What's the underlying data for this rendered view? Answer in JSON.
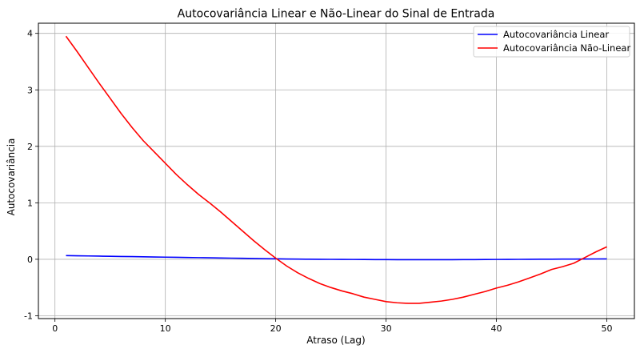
{
  "chart_data": {
    "type": "line",
    "title": "Autocovariância Linear e Não-Linear do Sinal de Entrada",
    "xlabel": "Atraso (Lag)",
    "ylabel": "Autocovariância",
    "xlim": [
      -1.5,
      52.5
    ],
    "ylim": [
      -1.05,
      4.18
    ],
    "xticks": [
      0,
      10,
      20,
      30,
      40,
      50
    ],
    "yticks": [
      -1,
      0,
      1,
      2,
      3,
      4
    ],
    "grid": true,
    "legend_position": "top-right",
    "x": [
      1,
      2,
      3,
      4,
      5,
      6,
      7,
      8,
      9,
      10,
      11,
      12,
      13,
      14,
      15,
      16,
      17,
      18,
      19,
      20,
      21,
      22,
      23,
      24,
      25,
      26,
      27,
      28,
      29,
      30,
      31,
      32,
      33,
      34,
      35,
      36,
      37,
      38,
      39,
      40,
      41,
      42,
      43,
      44,
      45,
      46,
      47,
      48,
      49,
      50
    ],
    "series": [
      {
        "name": "Autocovariância Linear",
        "color": "#0000ff",
        "values": [
          0.065,
          0.062,
          0.059,
          0.056,
          0.053,
          0.05,
          0.047,
          0.044,
          0.041,
          0.038,
          0.035,
          0.032,
          0.029,
          0.026,
          0.023,
          0.02,
          0.017,
          0.014,
          0.011,
          0.008,
          0.005,
          0.003,
          0.001,
          0.0,
          -0.001,
          -0.002,
          -0.003,
          -0.004,
          -0.005,
          -0.006,
          -0.007,
          -0.008,
          -0.008,
          -0.008,
          -0.008,
          -0.007,
          -0.006,
          -0.005,
          -0.004,
          -0.003,
          -0.002,
          -0.001,
          0.0,
          0.001,
          0.002,
          0.003,
          0.004,
          0.005,
          0.006,
          0.007
        ]
      },
      {
        "name": "Autocovariância Não-Linear",
        "color": "#ff0000",
        "values": [
          3.95,
          3.68,
          3.4,
          3.12,
          2.85,
          2.58,
          2.33,
          2.1,
          1.9,
          1.7,
          1.5,
          1.32,
          1.15,
          1.0,
          0.84,
          0.67,
          0.5,
          0.33,
          0.17,
          0.02,
          -0.12,
          -0.24,
          -0.34,
          -0.43,
          -0.5,
          -0.56,
          -0.61,
          -0.67,
          -0.71,
          -0.75,
          -0.77,
          -0.78,
          -0.78,
          -0.76,
          -0.74,
          -0.71,
          -0.67,
          -0.62,
          -0.57,
          -0.51,
          -0.46,
          -0.4,
          -0.33,
          -0.26,
          -0.18,
          -0.13,
          -0.07,
          0.03,
          0.13,
          0.22
        ]
      }
    ]
  }
}
